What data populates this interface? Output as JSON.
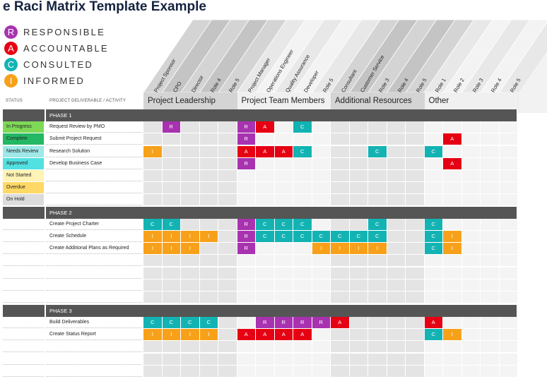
{
  "title": "e Raci Matrix Template Example",
  "legend": [
    {
      "letter": "R",
      "label": "RESPONSIBLE",
      "color": "#a832b0"
    },
    {
      "letter": "A",
      "label": "ACCOUNTABLE",
      "color": "#e60013"
    },
    {
      "letter": "C",
      "label": "CONSULTED",
      "color": "#13b3b3"
    },
    {
      "letter": "I",
      "label": "INFORMED",
      "color": "#f7a11b"
    }
  ],
  "table_header": {
    "status": "STATUS",
    "deliverable": "PROJECT DELIVERABLE / ACTIVITY"
  },
  "groups": [
    {
      "name": "Project Leadership",
      "roles": [
        "Project Sponsor",
        "CPO",
        "Director",
        "Role 4",
        "Role 5"
      ]
    },
    {
      "name": "Project Team Members",
      "roles": [
        "Project Manager",
        "Operations Engineer",
        "Quality Assurance",
        "Developer",
        "Role 5"
      ]
    },
    {
      "name": "Additional Resources",
      "roles": [
        "Consultant",
        "Customer Service",
        "Role 3",
        "Role 4",
        "Role 5"
      ]
    },
    {
      "name": "Other",
      "roles": [
        "Role 1",
        "Role 2",
        "Role 3",
        "Role 4",
        "Role 5"
      ]
    }
  ],
  "colors": {
    "R": "#a832b0",
    "A": "#e60013",
    "C": "#13b3b3",
    "I": "#f7a11b"
  },
  "phases": [
    {
      "label": "PHASE 1",
      "rows": [
        {
          "status": "In Progress",
          "status_color": "#7ed957",
          "activity": "Request Review by PMO",
          "cells": [
            "",
            "R",
            "",
            "",
            "",
            "R",
            "A",
            "",
            "C",
            "",
            "",
            "",
            "",
            "",
            "",
            "",
            "",
            "",
            "",
            ""
          ]
        },
        {
          "status": "Complete",
          "status_color": "#24b865",
          "activity": "Submit Project Request",
          "cells": [
            "",
            "",
            "",
            "",
            "",
            "R",
            "",
            "",
            "",
            "",
            "",
            "",
            "",
            "",
            "",
            "",
            "A",
            "",
            "",
            ""
          ]
        },
        {
          "status": "Needs Review",
          "status_color": "#9ee8e8",
          "activity": "Research Solution",
          "cells": [
            "I",
            "",
            "",
            "",
            "",
            "A",
            "A",
            "A",
            "C",
            "",
            "",
            "",
            "C",
            "",
            "",
            "C",
            "",
            "",
            "",
            ""
          ]
        },
        {
          "status": "Approved",
          "status_color": "#52e0e0",
          "activity": "Develop Business Case",
          "cells": [
            "",
            "",
            "",
            "",
            "",
            "R",
            "",
            "",
            "",
            "",
            "",
            "",
            "",
            "",
            "",
            "",
            "A",
            "",
            "",
            ""
          ]
        },
        {
          "status": "Not Started",
          "status_color": "#fff3b5",
          "activity": "",
          "cells": []
        },
        {
          "status": "Overdue",
          "status_color": "#ffd866",
          "activity": "",
          "cells": []
        },
        {
          "status": "On Hold",
          "status_color": "#dcdcdc",
          "activity": "",
          "cells": []
        }
      ]
    },
    {
      "label": "PHASE 2",
      "rows": [
        {
          "status": "",
          "status_color": "",
          "activity": "Create Project Charter",
          "cells": [
            "C",
            "C",
            "",
            "",
            "",
            "R",
            "C",
            "C",
            "C",
            "",
            "",
            "",
            "C",
            "",
            "",
            "C",
            "",
            "",
            "",
            ""
          ]
        },
        {
          "status": "",
          "status_color": "",
          "activity": "Create Schedule",
          "cells": [
            "I",
            "I",
            "I",
            "I",
            "",
            "R",
            "C",
            "C",
            "C",
            "C",
            "C",
            "C",
            "C",
            "",
            "",
            "C",
            "I",
            "",
            "",
            ""
          ]
        },
        {
          "status": "",
          "status_color": "",
          "activity": "Create Additional Plans as Required",
          "cells": [
            "I",
            "I",
            "I",
            "",
            "",
            "R",
            "",
            "",
            "",
            "I",
            "I",
            "I",
            "I",
            "",
            "",
            "C",
            "I",
            "",
            "",
            ""
          ]
        },
        {
          "status": "",
          "status_color": "",
          "activity": "",
          "cells": []
        },
        {
          "status": "",
          "status_color": "",
          "activity": "",
          "cells": []
        },
        {
          "status": "",
          "status_color": "",
          "activity": "",
          "cells": []
        },
        {
          "status": "",
          "status_color": "",
          "activity": "",
          "cells": []
        }
      ]
    },
    {
      "label": "PHASE 3",
      "rows": [
        {
          "status": "",
          "status_color": "",
          "activity": "Build Deliverables",
          "cells": [
            "C",
            "C",
            "C",
            "C",
            "",
            "",
            "R",
            "R",
            "R",
            "R",
            "A",
            "",
            "",
            "",
            "",
            "A",
            "",
            "",
            "",
            ""
          ]
        },
        {
          "status": "",
          "status_color": "",
          "activity": "Create Status Report",
          "cells": [
            "I",
            "I",
            "I",
            "I",
            "",
            "A",
            "A",
            "A",
            "A",
            "",
            "",
            "",
            "",
            "",
            "",
            "C",
            "I",
            "",
            "",
            ""
          ]
        },
        {
          "status": "",
          "status_color": "",
          "activity": "",
          "cells": []
        },
        {
          "status": "",
          "status_color": "",
          "activity": "",
          "cells": []
        },
        {
          "status": "",
          "status_color": "",
          "activity": "",
          "cells": []
        }
      ]
    }
  ]
}
